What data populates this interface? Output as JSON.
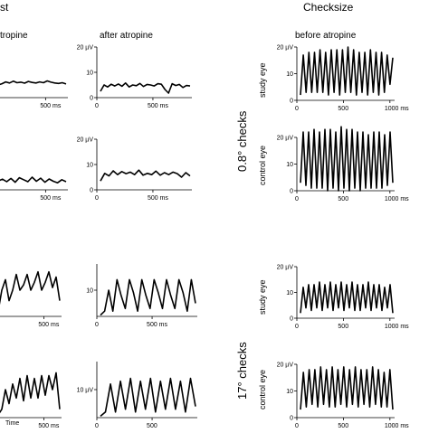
{
  "headers": {
    "left_fragment": "st",
    "right_title": "Checksize"
  },
  "subtitles": {
    "left_fragment": "tropine",
    "after": "after atropine",
    "before": "before atropine"
  },
  "row_labels": {
    "checks_small": "0.8° checks",
    "checks_large": "17° checks"
  },
  "eye_labels": {
    "study": "study eye",
    "control": "control eye"
  },
  "tick_labels": {
    "zero": "0",
    "ten_uv": "10 µV",
    "twenty_uv": "20 µV",
    "ten": "10",
    "twenty": "20",
    "ms500": "500 ms",
    "ms500_short": "500",
    "ms1000": "1000 ms"
  },
  "time_label": "Time",
  "chart_data": [
    {
      "id": "left-r1",
      "type": "line",
      "series": [
        {
          "values": [
            5,
            5.5,
            6.2,
            5.8,
            6.5,
            5.9,
            6.1,
            5.7,
            6.4,
            6.0,
            5.8,
            6.2,
            5.9,
            6.6,
            6.1,
            5.8,
            5.6,
            5.9,
            5.4
          ]
        }
      ]
    },
    {
      "id": "after-r1",
      "type": "line",
      "xlabel": "",
      "ylabel": "",
      "xlim": [
        0,
        1000
      ],
      "ylim": [
        0,
        20
      ],
      "x_ticks": [
        0,
        500
      ],
      "y_ticks": [
        0,
        10,
        20
      ],
      "series": [
        {
          "values": [
            2.5,
            5,
            4.2,
            5.3,
            4.6,
            5.4,
            4.5,
            5.8,
            4.2,
            5.0,
            4.7,
            5.6,
            4.4,
            5.2,
            5.0,
            4.6,
            5.5,
            5.3,
            3.2,
            1.8,
            5.5,
            4.8,
            5.2,
            4.0,
            4.8,
            4.6
          ]
        }
      ]
    },
    {
      "id": "left-r2",
      "type": "line",
      "series": [
        {
          "values": [
            3.5,
            4.2,
            3.2,
            4.5,
            3.0,
            4.8,
            4.0,
            3.2,
            5.0,
            3.4,
            4.6,
            3.0,
            4.3,
            3.4,
            2.8,
            4.0,
            3.2
          ]
        }
      ]
    },
    {
      "id": "after-r2",
      "type": "line",
      "xlim": [
        0,
        1000
      ],
      "ylim": [
        0,
        20
      ],
      "x_ticks": [
        0,
        500
      ],
      "y_ticks": [
        0,
        10,
        20
      ],
      "series": [
        {
          "values": [
            3.5,
            6.5,
            5.5,
            7.5,
            6.0,
            7.2,
            6.4,
            7.0,
            6.0,
            7.8,
            5.8,
            6.5,
            6.0,
            7.4,
            5.8,
            6.8,
            6.0,
            7.0,
            6.4,
            5.0,
            6.8,
            5.5
          ]
        }
      ]
    },
    {
      "id": "left-r3",
      "type": "line",
      "series": [
        {
          "values": [
            2,
            10,
            14,
            6,
            10,
            16,
            10,
            12,
            16,
            10,
            13,
            17,
            10,
            13,
            17,
            11,
            15,
            6
          ]
        }
      ]
    },
    {
      "id": "after-r3",
      "type": "line",
      "xlim": [
        0,
        1000
      ],
      "ylim": [
        0,
        20
      ],
      "x_ticks": [
        0,
        500
      ],
      "y_ticks": [
        10
      ],
      "series": [
        {
          "values": [
            0.5,
            2,
            10,
            2,
            14,
            8,
            3,
            14,
            9,
            2,
            14,
            8,
            3,
            14,
            9,
            3,
            14,
            8,
            3,
            14,
            9,
            2,
            14,
            5
          ]
        }
      ]
    },
    {
      "id": "left-r4",
      "type": "line",
      "series": [
        {
          "values": [
            1,
            3,
            10,
            5,
            12,
            7,
            14,
            6,
            15,
            7,
            14,
            7,
            15,
            8,
            15,
            10,
            16,
            3
          ]
        }
      ]
    },
    {
      "id": "after-r4",
      "type": "line",
      "xlim": [
        0,
        1000
      ],
      "ylim": [
        0,
        20
      ],
      "x_ticks": [
        0,
        500
      ],
      "y_ticks": [
        10
      ],
      "series": [
        {
          "values": [
            0.5,
            2,
            12,
            2,
            13,
            3,
            14,
            2,
            13,
            3,
            14,
            2,
            13,
            3,
            14,
            3,
            13,
            2,
            14,
            4
          ]
        }
      ]
    },
    {
      "id": "before-study-small",
      "type": "line",
      "xlim": [
        0,
        1050
      ],
      "ylim": [
        0,
        20
      ],
      "x_ticks": [
        0,
        500,
        1000
      ],
      "y_ticks": [
        0,
        10,
        20
      ],
      "series": [
        {
          "values": [
            2,
            17,
            3,
            18,
            3,
            18,
            3,
            19,
            3,
            18,
            2,
            19,
            3,
            19,
            2,
            19,
            3,
            20,
            3,
            19,
            2,
            18,
            3,
            18,
            2,
            19,
            3,
            18,
            2,
            18,
            3,
            17,
            6,
            16
          ]
        }
      ]
    },
    {
      "id": "before-control-small",
      "type": "line",
      "xlim": [
        0,
        1050
      ],
      "ylim": [
        0,
        20
      ],
      "x_ticks": [
        0,
        500,
        1000
      ],
      "y_ticks": [
        0,
        10,
        20
      ],
      "series": [
        {
          "values": [
            3,
            22,
            2,
            22,
            1,
            23,
            1,
            22,
            1,
            23,
            0,
            23,
            1,
            22,
            0,
            24,
            1,
            23,
            0,
            23,
            1,
            22,
            0,
            22,
            1,
            21,
            1,
            22,
            1,
            22,
            1,
            21,
            2,
            22,
            3
          ]
        }
      ]
    },
    {
      "id": "before-study-large",
      "type": "line",
      "xlim": [
        0,
        1050
      ],
      "ylim": [
        0,
        20
      ],
      "x_ticks": [
        0,
        500,
        1000
      ],
      "y_ticks": [
        0,
        10,
        20
      ],
      "series": [
        {
          "values": [
            2,
            12,
            4,
            13,
            3,
            13,
            4,
            14,
            3,
            13,
            4,
            14,
            3,
            13,
            4,
            14,
            3,
            13,
            4,
            14,
            3,
            13,
            3,
            13,
            4,
            14,
            3,
            13,
            4,
            13,
            3,
            12,
            4,
            13,
            2
          ]
        }
      ]
    },
    {
      "id": "before-control-large",
      "type": "line",
      "xlim": [
        0,
        1050
      ],
      "ylim": [
        0,
        20
      ],
      "x_ticks": [
        0,
        500,
        1000
      ],
      "y_ticks": [
        0,
        10,
        20
      ],
      "series": [
        {
          "values": [
            3,
            17,
            4,
            18,
            5,
            18,
            4,
            19,
            5,
            18,
            4,
            19,
            4,
            18,
            5,
            19,
            4,
            18,
            5,
            19,
            4,
            18,
            5,
            18,
            4,
            19,
            5,
            18,
            4,
            17,
            4,
            18,
            3
          ]
        }
      ]
    }
  ]
}
